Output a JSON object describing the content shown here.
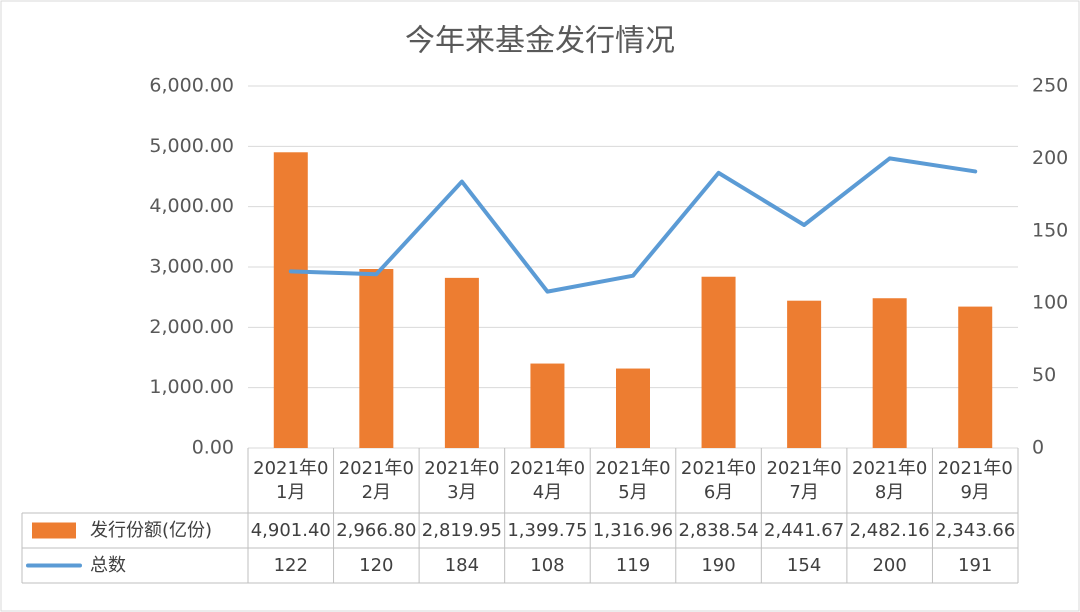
{
  "chart_data": {
    "type": "bar_line_table",
    "title": "今年来基金发行情况",
    "categories": [
      "2021年01月",
      "2021年02月",
      "2021年03月",
      "2021年04月",
      "2021年05月",
      "2021年06月",
      "2021年07月",
      "2021年08月",
      "2021年09月"
    ],
    "series": [
      {
        "name": "发行份额(亿份)",
        "type": "bar",
        "color": "#ed7d31",
        "values": [
          4901.4,
          2966.8,
          2819.95,
          1399.75,
          1316.96,
          2838.54,
          2441.67,
          2482.16,
          2343.66
        ],
        "value_labels": [
          "4,901.40",
          "2,966.80",
          "2,819.95",
          "1,399.75",
          "1,316.96",
          "2,838.54",
          "2,441.67",
          "2,482.16",
          "2,343.66"
        ]
      },
      {
        "name": "总数",
        "type": "line",
        "color": "#5b9bd5",
        "axis": "y2",
        "values": [
          122,
          120,
          184,
          108,
          119,
          190,
          154,
          200,
          191
        ]
      }
    ],
    "ylim": [
      0,
      6000
    ],
    "yticks": [
      {
        "value": 0,
        "label": "0.00"
      },
      {
        "value": 1000,
        "label": "1,000.00"
      },
      {
        "value": 2000,
        "label": "2,000.00"
      },
      {
        "value": 3000,
        "label": "3,000.00"
      },
      {
        "value": 4000,
        "label": "4,000.00"
      },
      {
        "value": 5000,
        "label": "5,000.00"
      },
      {
        "value": 6000,
        "label": "6,000.00"
      }
    ],
    "y2lim": [
      0,
      250
    ],
    "y2ticks": [
      0,
      50,
      100,
      150,
      200,
      250
    ],
    "grid": true
  }
}
